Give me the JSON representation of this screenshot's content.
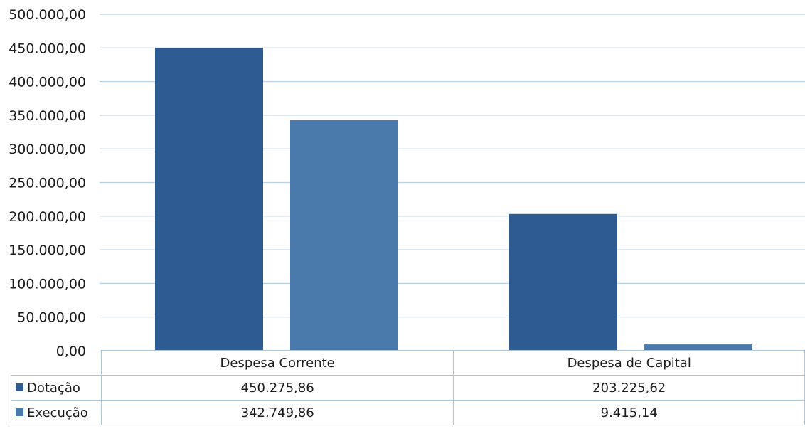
{
  "chart_data": {
    "type": "bar",
    "categories": [
      "Despesa Corrente",
      "Despesa de Capital"
    ],
    "series": [
      {
        "name": "Dotação",
        "values": [
          450275.86,
          203225.62
        ],
        "labels": [
          "450.275,86",
          "203.225,62"
        ],
        "color": "#2e5b92"
      },
      {
        "name": "Execução",
        "values": [
          342749.86,
          9415.14
        ],
        "labels": [
          "342.749,86",
          "9.415,14"
        ],
        "color": "#4a7aac"
      }
    ],
    "ylim": [
      0,
      500000
    ],
    "yticks": [
      0,
      50000,
      100000,
      150000,
      200000,
      250000,
      300000,
      350000,
      400000,
      450000,
      500000
    ],
    "ytick_labels": [
      "0,00",
      "50.000,00",
      "100.000,00",
      "150.000,00",
      "200.000,00",
      "250.000,00",
      "300.000,00",
      "350.000,00",
      "400.000,00",
      "450.000,00",
      "500.000,00"
    ],
    "grid": true,
    "legend": "data-table",
    "title": "",
    "xlabel": "",
    "ylabel": ""
  }
}
